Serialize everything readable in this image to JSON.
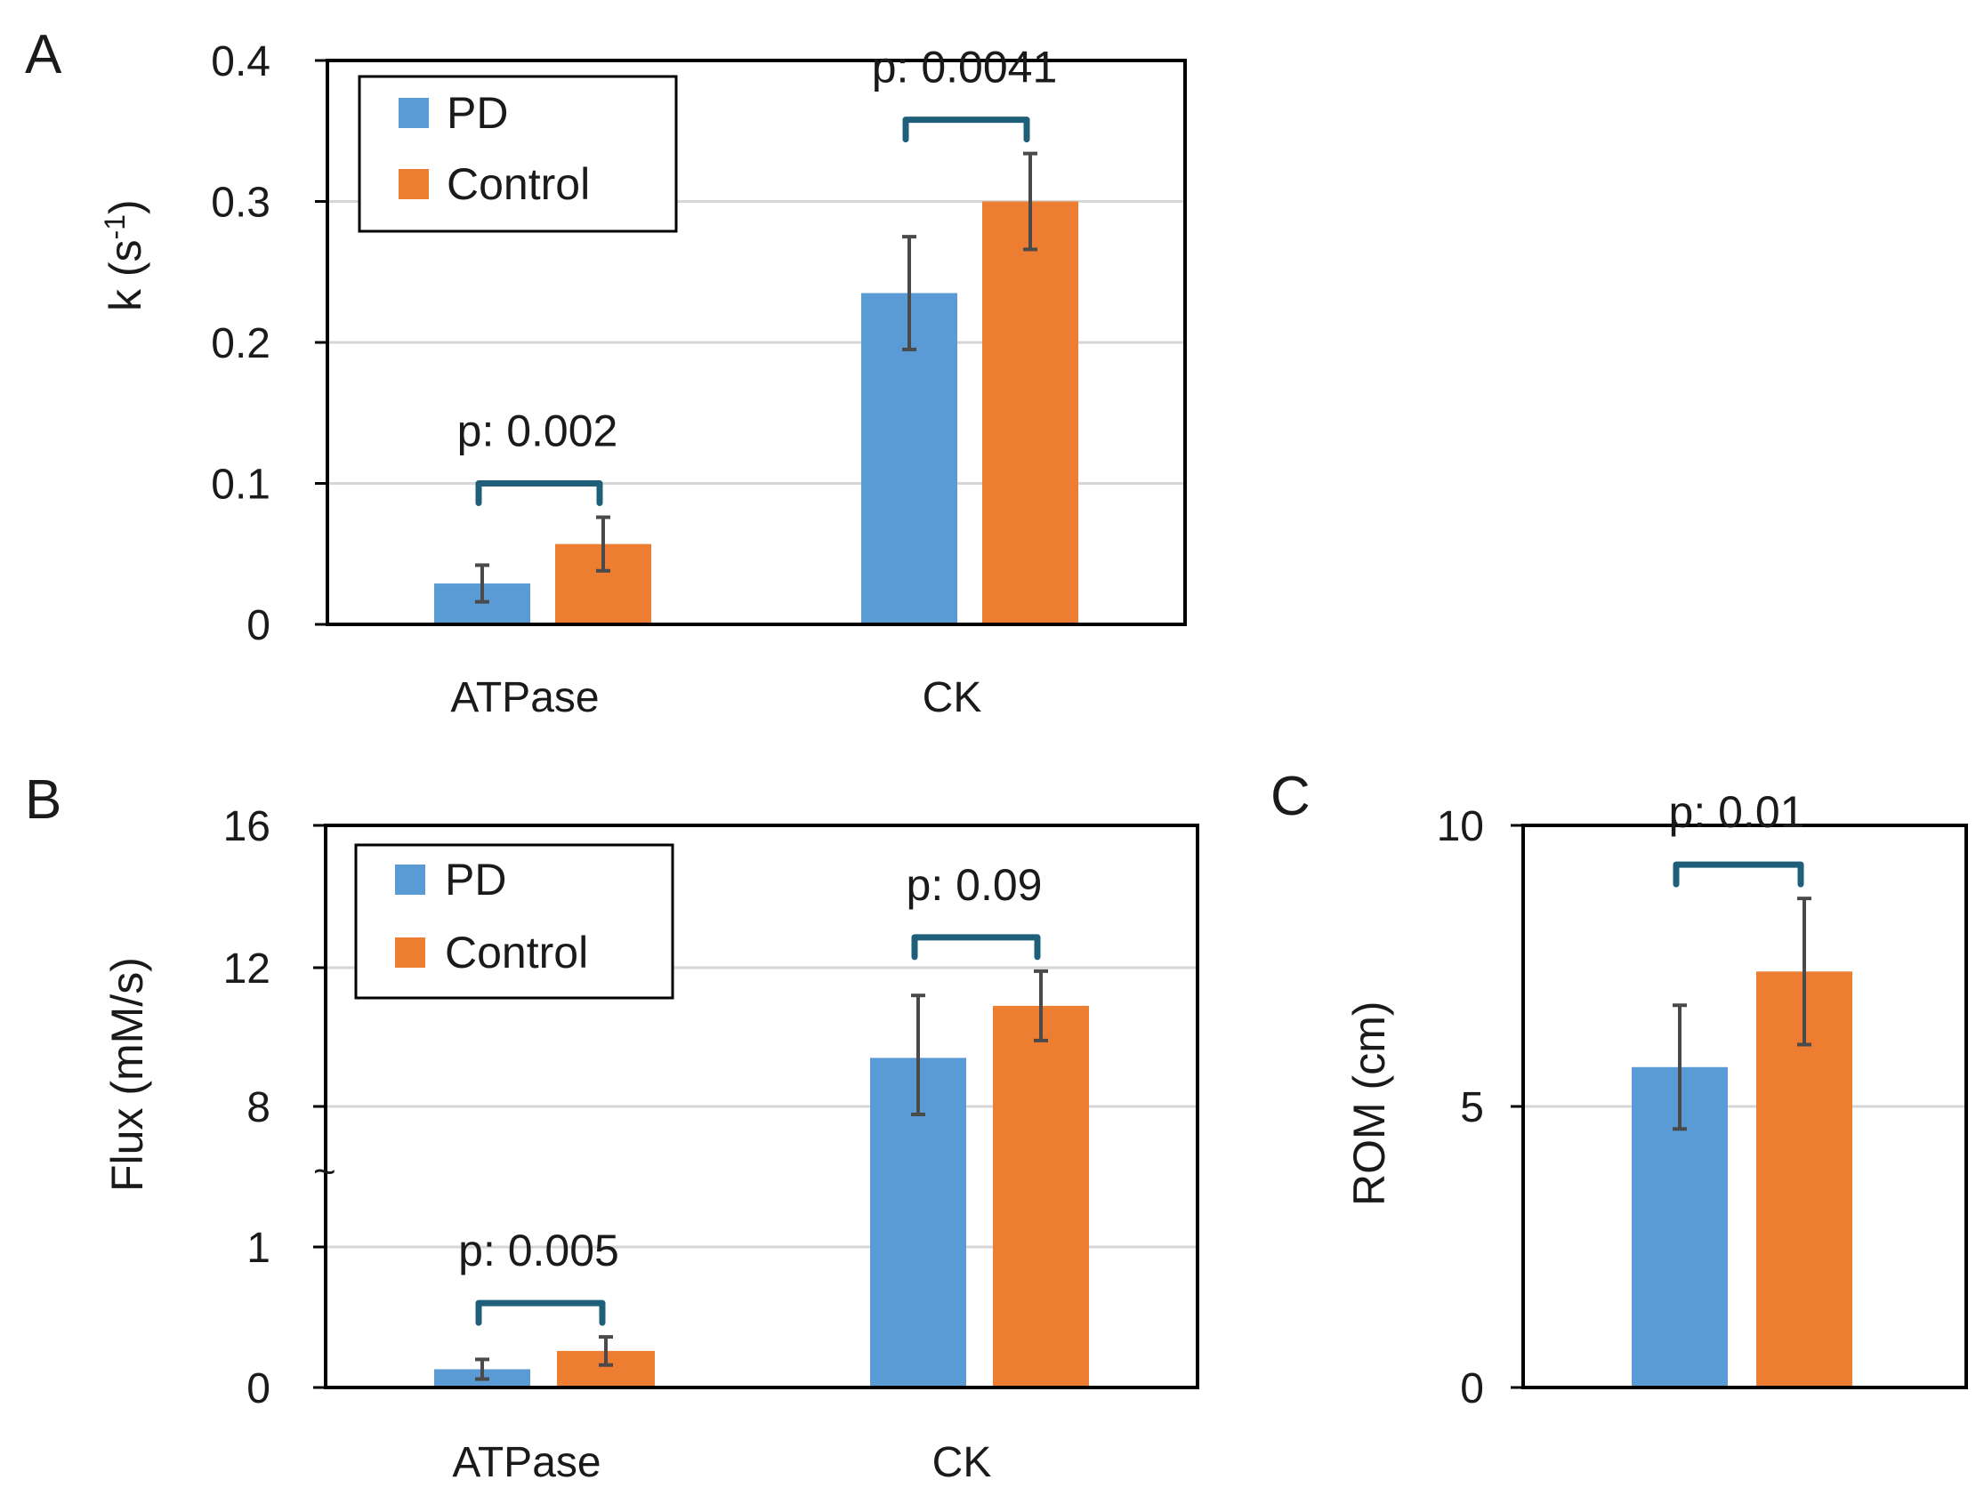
{
  "colors": {
    "pd": "#5b9bd5",
    "control": "#ed7d31",
    "bracket": "#1f5f7a",
    "errorbar": "#4a4a4a",
    "grid": "#d6d6d6",
    "axis": "#000000"
  },
  "chart_data": [
    {
      "panel_label": "A",
      "type": "bar",
      "ylabel": "k (s",
      "ylabel_sup": "-1",
      "ylabel_close": ")",
      "categories": [
        "ATPase",
        "CK"
      ],
      "ylim": [
        0,
        0.4
      ],
      "yticks": [
        0,
        0.1,
        0.2,
        0.3,
        0.4
      ],
      "ytick_labels": [
        "0",
        "0.1",
        "0.2",
        "0.3",
        "0.4"
      ],
      "grid": true,
      "legend": {
        "placement": "top-left",
        "entries": [
          "PD",
          "Control"
        ]
      },
      "series": [
        {
          "name": "PD",
          "values": [
            0.029,
            0.235
          ],
          "errors": [
            0.013,
            0.04
          ]
        },
        {
          "name": "Control",
          "values": [
            0.057,
            0.3
          ],
          "errors": [
            0.019,
            0.034
          ]
        }
      ],
      "annotations": [
        {
          "category": "ATPase",
          "text": "p: 0.002"
        },
        {
          "category": "CK",
          "text": "p: 0.0041"
        }
      ]
    },
    {
      "panel_label": "B",
      "type": "bar",
      "ylabel": "Flux (mM/s)",
      "categories": [
        "ATPase",
        "CK"
      ],
      "broken_axis": true,
      "axis_break_symbol": "~",
      "yticks": [
        0,
        1,
        8,
        12,
        16
      ],
      "ytick_labels": [
        "0",
        "1",
        "8",
        "12",
        "16"
      ],
      "grid": true,
      "legend": {
        "placement": "top-left",
        "entries": [
          "PD",
          "Control"
        ]
      },
      "series": [
        {
          "name": "PD",
          "values": [
            0.13,
            9.4
          ],
          "errors": [
            0.07,
            1.8
          ]
        },
        {
          "name": "Control",
          "values": [
            0.26,
            10.9
          ],
          "errors": [
            0.1,
            1.0
          ]
        }
      ],
      "annotations": [
        {
          "category": "ATPase",
          "text": "p: 0.005"
        },
        {
          "category": "CK",
          "text": "p: 0.09"
        }
      ]
    },
    {
      "panel_label": "C",
      "type": "bar",
      "ylabel": "ROM (cm)",
      "categories": [
        ""
      ],
      "ylim": [
        0,
        10
      ],
      "yticks": [
        0,
        5,
        10
      ],
      "ytick_labels": [
        "0",
        "5",
        "10"
      ],
      "grid": true,
      "series": [
        {
          "name": "PD",
          "values": [
            5.7
          ],
          "errors": [
            1.1
          ]
        },
        {
          "name": "Control",
          "values": [
            7.4
          ],
          "errors": [
            1.3
          ]
        }
      ],
      "annotations": [
        {
          "category": "",
          "text": "p: 0.01"
        }
      ]
    }
  ]
}
